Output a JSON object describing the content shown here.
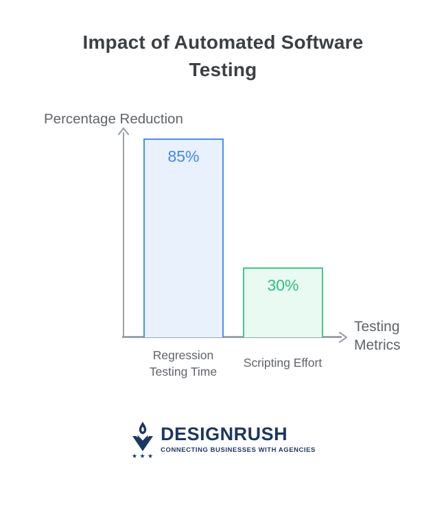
{
  "title": {
    "full": "Impact of Automated Software Testing",
    "line1": "Impact of Automated Software",
    "line2": "Testing",
    "color": "#3C4043"
  },
  "chart_data": {
    "type": "bar",
    "title": "Impact of Automated Software Testing",
    "categories": [
      "Regression Testing Time",
      "Scripting Effort"
    ],
    "values": [
      85,
      30
    ],
    "value_labels": [
      "85%",
      "30%"
    ],
    "xlabel": "Testing Metrics",
    "ylabel": "Percentage Reduction",
    "ylim": [
      0,
      100
    ],
    "grid": false,
    "legend": "none",
    "axis_color": "#9AA0A6",
    "label_color": "#5F6368",
    "series": [
      {
        "name": "Regression Testing Time",
        "value": 85,
        "label": "85%",
        "border_color": "#4A8CF7",
        "fill_color": "#E9F1FC",
        "text_color": "#4285F4"
      },
      {
        "name": "Scripting Effort",
        "value": 30,
        "label": "30%",
        "border_color": "#3FC88F",
        "fill_color": "#E8FAF1",
        "text_color": "#2EBE82"
      }
    ]
  },
  "axis_labels": {
    "ylabel": "Percentage Reduction",
    "xlabel_line1": "Testing",
    "xlabel_line2": "Metrics",
    "cat1_line1": "Regression",
    "cat1_line2": "Testing Time",
    "cat2": "Scripting Effort"
  },
  "footer_logo": {
    "brand": "DESIGNRUSH",
    "tagline": "CONNECTING BUSINESSES WITH AGENCIES",
    "color": "#1B3764",
    "mark_icon": "torch-flame-v-stars-icon"
  }
}
